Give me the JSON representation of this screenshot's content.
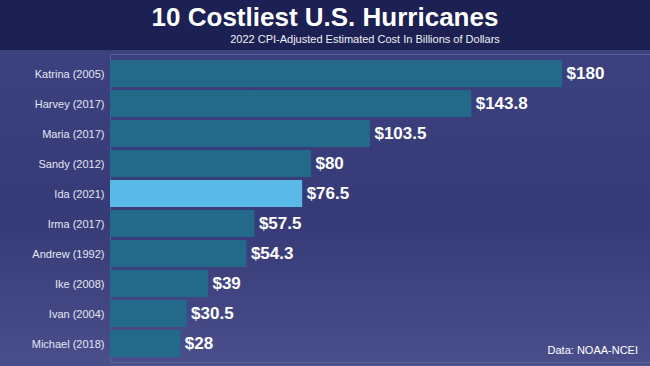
{
  "chart_data": {
    "type": "bar",
    "title": "10 Costliest U.S. Hurricanes",
    "subtitle": "2022 CPI-Adjusted Estimated Cost In Billions of Dollars",
    "note": "Data: NOAA-NCEI",
    "orientation": "horizontal",
    "categories": [
      "Katrina (2005)",
      "Harvey (2017)",
      "Maria (2017)",
      "Sandy (2012)",
      "Ida (2021)",
      "Irma (2017)",
      "Andrew (1992)",
      "Ike (2008)",
      "Ivan (2004)",
      "Michael (2018)"
    ],
    "values": [
      180,
      143.8,
      103.5,
      80,
      76.5,
      57.5,
      54.3,
      39,
      30.5,
      28
    ],
    "value_labels": [
      "$180",
      "$143.8",
      "$103.5",
      "$80",
      "$76.5",
      "$57.5",
      "$54.3",
      "$39",
      "$30.5",
      "$28"
    ],
    "colors": [
      "#236a8a",
      "#236a8a",
      "#236a8a",
      "#236a8a",
      "#5bb9e8",
      "#236a8a",
      "#236a8a",
      "#236a8a",
      "#236a8a",
      "#236a8a"
    ],
    "xlim": [
      0,
      215
    ],
    "data_labels": true,
    "tick_labels": "y",
    "grid": false
  }
}
